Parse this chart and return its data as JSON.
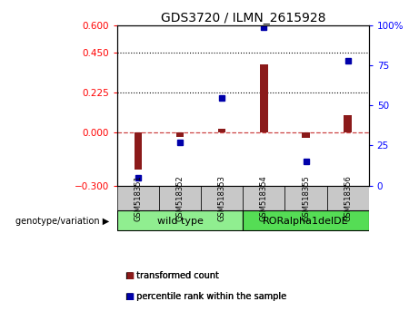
{
  "title": "GDS3720 / ILMN_2615928",
  "samples": [
    "GSM518351",
    "GSM518352",
    "GSM518353",
    "GSM518354",
    "GSM518355",
    "GSM518356"
  ],
  "transformed_count": [
    -0.21,
    -0.025,
    0.018,
    0.38,
    -0.03,
    0.095
  ],
  "percentile_rank": [
    5,
    27,
    55,
    99,
    15,
    78
  ],
  "groups": [
    {
      "label": "wild type",
      "samples": [
        0,
        1,
        2
      ],
      "color": "#90EE90"
    },
    {
      "label": "RORalpha1delDE",
      "samples": [
        3,
        4,
        5
      ],
      "color": "#55DD55"
    }
  ],
  "left_ylim": [
    -0.3,
    0.6
  ],
  "left_yticks": [
    -0.3,
    0.0,
    0.225,
    0.45,
    0.6
  ],
  "right_ylim": [
    0,
    100
  ],
  "right_yticks": [
    0,
    25,
    50,
    75,
    100
  ],
  "right_yticklabels": [
    "0",
    "25",
    "50",
    "75",
    "100%"
  ],
  "hlines": [
    0.225,
    0.45
  ],
  "bar_color": "#8B1A1A",
  "dot_color": "#0000AA",
  "zero_line_color": "#CC4444",
  "hline_color": "#000000",
  "sample_box_color": "#C8C8C8",
  "legend_items": [
    {
      "label": "transformed count",
      "color": "#8B1A1A"
    },
    {
      "label": "percentile rank within the sample",
      "color": "#0000AA"
    }
  ],
  "genotype_label": "genotype/variation",
  "title_fontsize": 10,
  "bar_width": 0.18
}
